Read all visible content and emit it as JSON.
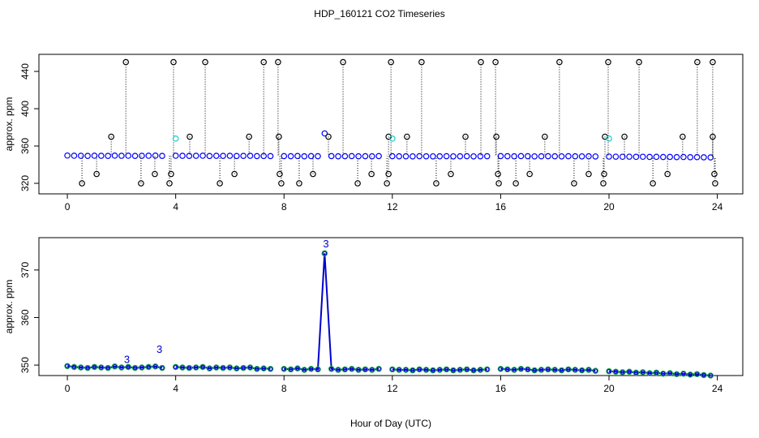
{
  "chart_data": [
    {
      "type": "scatter",
      "title": "HDP_160121  CO2 Timeseries",
      "ylabel": "approx. ppm",
      "xlim": [
        -1.05,
        24.94
      ],
      "xticks": [
        0,
        4,
        8,
        12,
        16,
        20,
        24
      ],
      "ylim": [
        308.7,
        458.3
      ],
      "yticks": [
        320,
        360,
        400,
        440
      ],
      "series": [
        {
          "color": "#0000ff",
          "style": "points",
          "x": [
            0,
            0.25,
            0.5,
            0.75,
            1,
            1.25,
            1.5,
            1.75,
            2,
            2.25,
            2.5,
            2.75,
            3,
            3.25,
            3.5,
            3.75,
            4,
            4.25,
            4.5,
            4.75,
            5,
            5.25,
            5.5,
            5.75,
            6,
            6.25,
            6.5,
            6.75,
            7,
            7.25,
            7.5,
            7.75,
            8,
            8.25,
            8.5,
            8.75,
            9,
            9.25,
            9.5,
            9.75,
            10,
            10.25,
            10.5,
            10.75,
            11,
            11.25,
            11.5,
            11.75,
            12,
            12.25,
            12.5,
            12.75,
            13,
            13.25,
            13.5,
            13.75,
            14,
            14.25,
            14.5,
            14.75,
            15,
            15.25,
            15.5,
            15.75,
            16,
            16.25,
            16.5,
            16.75,
            17,
            17.25,
            17.5,
            17.75,
            18,
            18.25,
            18.5,
            18.75,
            19,
            19.25,
            19.5,
            19.75,
            20,
            20.25,
            20.5,
            20.75,
            21,
            21.25,
            21.5,
            21.75,
            22,
            22.25,
            22.5,
            22.75,
            23,
            23.25,
            23.5,
            23.75
          ],
          "values": [
            349.8,
            349.6,
            349.5,
            349.4,
            349.6,
            349.5,
            349.4,
            349.7,
            349.5,
            349.6,
            349.4,
            349.5,
            349.6,
            349.7,
            349.4,
            null,
            349.6,
            349.5,
            349.4,
            349.5,
            349.6,
            349.3,
            349.5,
            349.4,
            349.5,
            349.3,
            349.4,
            349.5,
            349.2,
            349.3,
            349.2,
            null,
            349.2,
            349.1,
            349.3,
            349.0,
            349.2,
            349.1,
            373.5,
            349.2,
            349.0,
            349.1,
            349.2,
            349.0,
            349.1,
            349.0,
            349.2,
            null,
            349.1,
            349.0,
            349.0,
            348.9,
            349.1,
            349.0,
            348.9,
            349.0,
            349.1,
            348.9,
            349.0,
            349.1,
            348.9,
            349.0,
            349.1,
            null,
            349.2,
            349.1,
            349.0,
            349.2,
            349.1,
            348.9,
            349.0,
            349.1,
            349.0,
            348.9,
            349.1,
            349.0,
            348.9,
            349.0,
            348.8,
            null,
            348.7,
            348.6,
            348.5,
            348.6,
            348.4,
            348.5,
            348.3,
            348.4,
            348.2,
            348.3,
            348.1,
            348.2,
            348.0,
            348.1,
            347.9,
            347.8
          ]
        },
        {
          "color": "#000000",
          "style": "outliers",
          "x": [
            2.16,
            3.92,
            5.09,
            7.25,
            7.78,
            10.18,
            11.95,
            13.08,
            15.27,
            15.81,
            18.17,
            19.97,
            21.11,
            23.26,
            23.83,
            1.62,
            4.52,
            6.71,
            7.81,
            9.64,
            11.86,
            12.54,
            14.7,
            15.84,
            17.63,
            19.85,
            20.57,
            22.72,
            23.83,
            1.08,
            3.23,
            3.83,
            6.17,
            7.84,
            9.07,
            11.23,
            11.86,
            14.16,
            15.9,
            17.07,
            19.25,
            19.82,
            22.16,
            23.89,
            0.54,
            2.72,
            3.77,
            5.63,
            7.9,
            8.56,
            10.72,
            11.8,
            13.62,
            15.93,
            16.56,
            18.71,
            19.79,
            21.62,
            23.92
          ],
          "values": [
            450,
            450,
            450,
            450,
            450,
            450,
            450,
            450,
            450,
            450,
            450,
            450,
            450,
            450,
            450,
            370,
            370,
            370,
            370,
            370,
            370,
            370,
            370,
            370,
            370,
            370,
            370,
            370,
            370,
            330,
            330,
            330,
            330,
            330,
            330,
            330,
            330,
            330,
            330,
            330,
            330,
            330,
            330,
            330,
            320,
            320,
            320,
            320,
            320,
            320,
            320,
            320,
            320,
            320,
            320,
            320,
            320,
            320,
            320
          ]
        },
        {
          "color": "#22cccc",
          "style": "points",
          "x": [
            4.0,
            12.0,
            20.0
          ],
          "values": [
            368,
            368,
            368
          ]
        }
      ]
    },
    {
      "type": "line",
      "ylabel": "approx. ppm",
      "xlabel": "Hour of Day (UTC)",
      "xlim": [
        -1.05,
        24.94
      ],
      "xticks": [
        0,
        4,
        8,
        12,
        16,
        20,
        24
      ],
      "ylim": [
        347.8,
        376.8
      ],
      "yticks": [
        350,
        360,
        370
      ],
      "series": [
        {
          "color": "#0000cc",
          "marker_color": "#22bb44",
          "x": [
            0,
            0.25,
            0.5,
            0.75,
            1,
            1.25,
            1.5,
            1.75,
            2,
            2.25,
            2.5,
            2.75,
            3,
            3.25,
            3.5,
            3.75,
            4,
            4.25,
            4.5,
            4.75,
            5,
            5.25,
            5.5,
            5.75,
            6,
            6.25,
            6.5,
            6.75,
            7,
            7.25,
            7.5,
            7.75,
            8,
            8.25,
            8.5,
            8.75,
            9,
            9.25,
            9.5,
            9.75,
            10,
            10.25,
            10.5,
            10.75,
            11,
            11.25,
            11.5,
            11.75,
            12,
            12.25,
            12.5,
            12.75,
            13,
            13.25,
            13.5,
            13.75,
            14,
            14.25,
            14.5,
            14.75,
            15,
            15.25,
            15.5,
            15.75,
            16,
            16.25,
            16.5,
            16.75,
            17,
            17.25,
            17.5,
            17.75,
            18,
            18.25,
            18.5,
            18.75,
            19,
            19.25,
            19.5,
            19.75,
            20,
            20.25,
            20.5,
            20.75,
            21,
            21.25,
            21.5,
            21.75,
            22,
            22.25,
            22.5,
            22.75,
            23,
            23.25,
            23.5,
            23.75
          ],
          "values": [
            349.8,
            349.6,
            349.5,
            349.4,
            349.6,
            349.5,
            349.4,
            349.7,
            349.5,
            349.6,
            349.4,
            349.5,
            349.6,
            349.7,
            349.4,
            null,
            349.6,
            349.5,
            349.4,
            349.5,
            349.6,
            349.3,
            349.5,
            349.4,
            349.5,
            349.3,
            349.4,
            349.5,
            349.2,
            349.3,
            349.2,
            null,
            349.2,
            349.1,
            349.3,
            349.0,
            349.2,
            349.1,
            373.5,
            349.2,
            349.0,
            349.1,
            349.2,
            349.0,
            349.1,
            349.0,
            349.2,
            null,
            349.1,
            349.0,
            349.0,
            348.9,
            349.1,
            349.0,
            348.9,
            349.0,
            349.1,
            348.9,
            349.0,
            349.1,
            348.9,
            349.0,
            349.1,
            null,
            349.2,
            349.1,
            349.0,
            349.2,
            349.1,
            348.9,
            349.0,
            349.1,
            349.0,
            348.9,
            349.1,
            349.0,
            348.9,
            349.0,
            348.8,
            null,
            348.7,
            348.6,
            348.5,
            348.6,
            348.4,
            348.5,
            348.3,
            348.4,
            348.2,
            348.3,
            348.1,
            348.2,
            348.0,
            348.1,
            347.9,
            347.8
          ]
        }
      ],
      "annotations": [
        {
          "text": "3",
          "x": 9.55,
          "y": 375.3
        },
        {
          "text": "3",
          "x": 3.4,
          "y": 353.2
        },
        {
          "text": "3",
          "x": 2.2,
          "y": 351
        }
      ]
    }
  ]
}
